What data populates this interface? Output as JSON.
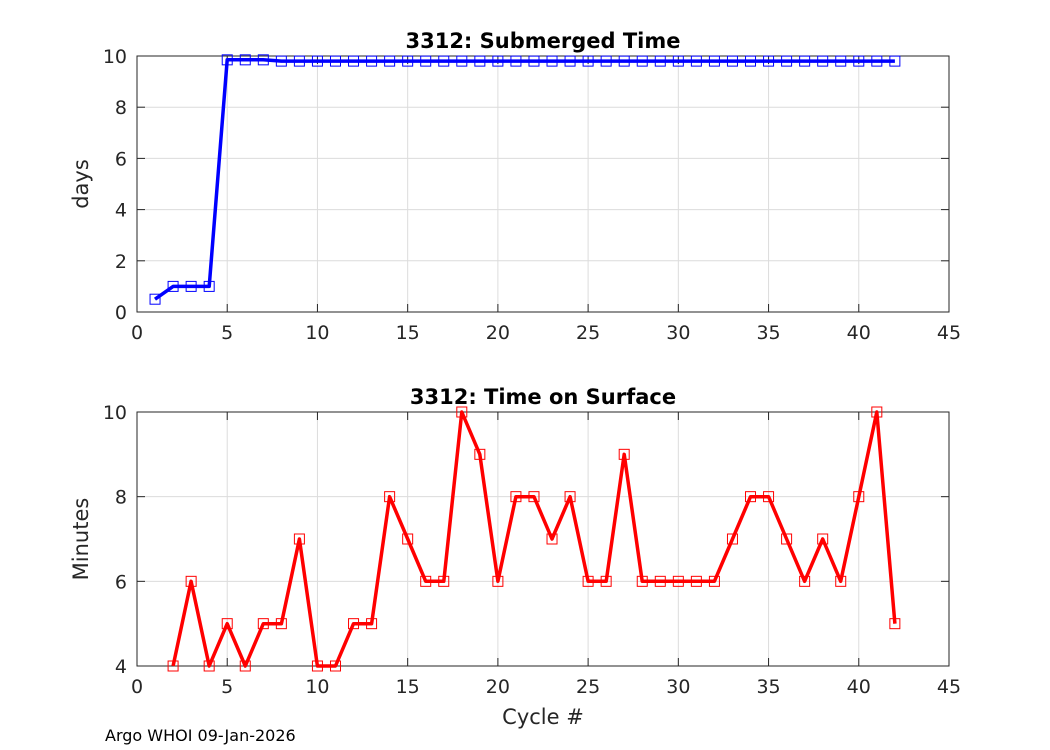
{
  "footer": "Argo WHOI 09-Jan-2026",
  "colors": {
    "series_top": "#0000ff",
    "series_bottom": "#ff0000",
    "grid": "#dcdcdc",
    "axes": "#262626"
  },
  "chart_data": [
    {
      "type": "line",
      "title": "3312: Submerged Time",
      "xlabel": "",
      "ylabel": "days",
      "xlim": [
        0,
        45
      ],
      "ylim": [
        0,
        10
      ],
      "xticks": [
        0,
        5,
        10,
        15,
        20,
        25,
        30,
        35,
        40,
        45
      ],
      "yticks": [
        0,
        2,
        4,
        6,
        8,
        10
      ],
      "grid": true,
      "marker": "square",
      "series": [
        {
          "color": "#0000ff",
          "x": [
            1,
            2,
            3,
            4,
            5,
            6,
            7,
            8,
            9,
            10,
            11,
            12,
            13,
            14,
            15,
            16,
            17,
            18,
            19,
            20,
            21,
            22,
            23,
            24,
            25,
            26,
            27,
            28,
            29,
            30,
            31,
            32,
            33,
            34,
            35,
            36,
            37,
            38,
            39,
            40,
            41,
            42
          ],
          "y": [
            0.5,
            1.0,
            1.0,
            1.0,
            9.85,
            9.85,
            9.85,
            9.8,
            9.8,
            9.8,
            9.8,
            9.8,
            9.8,
            9.8,
            9.8,
            9.8,
            9.8,
            9.8,
            9.8,
            9.8,
            9.8,
            9.8,
            9.8,
            9.8,
            9.8,
            9.8,
            9.8,
            9.8,
            9.8,
            9.8,
            9.8,
            9.8,
            9.8,
            9.8,
            9.8,
            9.8,
            9.8,
            9.8,
            9.8,
            9.8,
            9.8,
            9.8
          ]
        }
      ]
    },
    {
      "type": "line",
      "title": "3312: Time on Surface",
      "xlabel": "Cycle #",
      "ylabel": "Minutes",
      "xlim": [
        0,
        45
      ],
      "ylim": [
        4,
        10
      ],
      "xticks": [
        0,
        5,
        10,
        15,
        20,
        25,
        30,
        35,
        40,
        45
      ],
      "yticks": [
        4,
        6,
        8,
        10
      ],
      "grid": true,
      "marker": "square",
      "series": [
        {
          "color": "#ff0000",
          "x": [
            2,
            3,
            4,
            5,
            6,
            7,
            8,
            9,
            10,
            11,
            12,
            13,
            14,
            15,
            16,
            17,
            18,
            19,
            20,
            21,
            22,
            23,
            24,
            25,
            26,
            27,
            28,
            29,
            30,
            31,
            32,
            33,
            34,
            35,
            36,
            37,
            38,
            39,
            40,
            41,
            42
          ],
          "y": [
            4,
            6,
            4,
            5,
            4,
            5,
            5,
            7,
            4,
            4,
            5,
            5,
            8,
            7,
            6,
            6,
            10,
            9,
            6,
            8,
            8,
            7,
            8,
            6,
            6,
            9,
            6,
            6,
            6,
            6,
            6,
            7,
            8,
            8,
            7,
            6,
            7,
            6,
            8,
            10,
            5
          ]
        }
      ]
    }
  ]
}
